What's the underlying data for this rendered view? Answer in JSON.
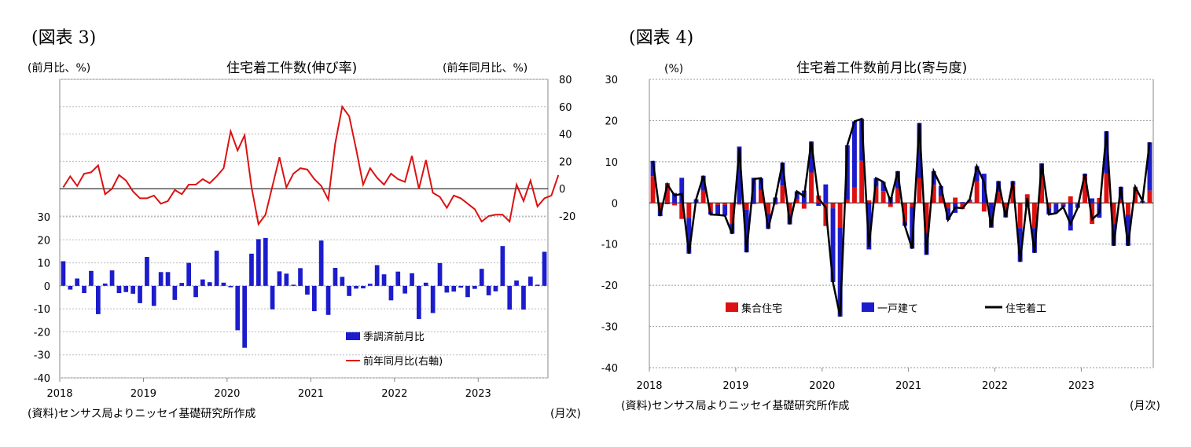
{
  "left": {
    "fig_label": "(図表 3)",
    "title": "住宅着工件数(伸び率)",
    "unit_left": "(前月比、%)",
    "unit_right": "(前年同月比、%)",
    "source": "(資料)センサス局よりニッセイ基礎研究所作成",
    "month_label": "(月次)"
  },
  "right": {
    "fig_label": "(図表 4)",
    "title": "住宅着工件数前月比(寄与度)",
    "unit": "(%)",
    "source": "(資料)センサス局よりニッセイ基礎研究所作成",
    "month_label": "(月次)"
  },
  "chart_data": [
    {
      "type": "bar",
      "title": "住宅着工件数(伸び率)",
      "x_tick_labels": [
        "2018",
        "2019",
        "2020",
        "2021",
        "2022",
        "2023"
      ],
      "x_start": "2018-01",
      "x_end": "2023-11",
      "ylim_left": [
        -40,
        30
      ],
      "yticks_left": [
        30,
        20,
        10,
        0,
        -10,
        -20,
        -30,
        -40
      ],
      "ylim_right": [
        -20,
        80
      ],
      "yticks_right": [
        80,
        60,
        40,
        20,
        0,
        -20
      ],
      "grid": true,
      "legend_position": "bottom-right",
      "colors": {
        "bar": "#1c1ccc",
        "line": "#dd1111"
      },
      "series": [
        {
          "name": "季調済前月比",
          "kind": "bar",
          "axis": "left",
          "values": [
            10.7,
            -1.6,
            3.2,
            -3.1,
            6.5,
            -12.3,
            1.0,
            6.7,
            -3.1,
            -2.7,
            -3.4,
            -7.5,
            12.6,
            -8.7,
            6.0,
            6.0,
            -6.1,
            1.3,
            10.0,
            -4.9,
            2.8,
            1.6,
            15.3,
            1.4,
            -0.6,
            -19.3,
            -26.9,
            14.0,
            20.3,
            20.8,
            -10.2,
            6.3,
            5.3,
            0.5,
            7.7,
            -3.8,
            -11.0,
            19.7,
            -12.6,
            7.8,
            3.9,
            -4.4,
            -1.2,
            -1.1,
            0.9,
            9.0,
            5.0,
            -6.3,
            6.2,
            -3.3,
            5.5,
            -14.4,
            1.4,
            -11.8,
            9.9,
            -2.9,
            -2.5,
            -0.8,
            -4.9,
            -1.3,
            7.4,
            -4.1,
            -2.4,
            17.3,
            -10.3,
            2.3,
            -10.3,
            4.0,
            0.5,
            14.8
          ]
        },
        {
          "name": "前年同月比(右軸)",
          "kind": "line",
          "axis": "right",
          "values": [
            1,
            9,
            2,
            11,
            12,
            17,
            -4,
            0,
            10,
            6,
            -2,
            -7,
            -7,
            -5,
            -11,
            -9,
            -1,
            -4,
            3,
            3,
            7,
            4,
            9,
            15,
            42,
            28,
            39,
            1,
            -26,
            -19,
            2,
            23,
            1,
            11,
            15,
            14,
            7,
            2,
            -8,
            33,
            60,
            53,
            29,
            3,
            15,
            8,
            3,
            11,
            7,
            5,
            24,
            0,
            21,
            -3,
            -6,
            -14,
            -5,
            -7,
            -11,
            -15,
            -24,
            -20,
            -19,
            -19,
            -24,
            3,
            -9,
            6,
            -13,
            -7,
            -5,
            10
          ]
        }
      ]
    },
    {
      "type": "bar",
      "title": "住宅着工件数前月比(寄与度)",
      "x_tick_labels": [
        "2018",
        "2019",
        "2020",
        "2021",
        "2022",
        "2023"
      ],
      "x_start": "2018-01",
      "x_end": "2023-11",
      "ylim": [
        -40,
        30
      ],
      "yticks": [
        30,
        20,
        10,
        0,
        -10,
        -20,
        -30,
        -40
      ],
      "grid": true,
      "stacked": true,
      "legend_position": "bottom",
      "colors": {
        "multi": "#dd1111",
        "single": "#1c1ccc",
        "total": "#000000"
      },
      "series": [
        {
          "name": "集合住宅",
          "kind": "bar",
          "values": [
            6.5,
            -1.8,
            4.8,
            -0.6,
            -3.9,
            -3.6,
            0.1,
            3.0,
            -2.1,
            -0.5,
            -0.5,
            -5.1,
            -0.4,
            -1.6,
            -0.3,
            3.2,
            -2.7,
            -0.4,
            4.2,
            -2.8,
            0.9,
            -1.4,
            7.4,
            1.8,
            -5.6,
            -1.3,
            -5.9,
            0.8,
            3.7,
            10.2,
            0.6,
            3.9,
            2.9,
            -1.0,
            3.5,
            -4.7,
            -1.0,
            6.0,
            -7.3,
            4.4,
            1.6,
            -1.3,
            1.3,
            -1.5,
            0.5,
            5.3,
            -2.1,
            0.1,
            2.7,
            -1.6,
            4.4,
            -6.1,
            2.1,
            -6.1,
            6.8,
            -1.3,
            -0.3,
            -0.4,
            1.6,
            -0.3,
            6.5,
            -5.1,
            1.2,
            7.2,
            -5.2,
            0.8,
            -2.9,
            3.8,
            0.1,
            3.0
          ]
        },
        {
          "name": "一戸建て",
          "kind": "bar",
          "values": [
            3.7,
            -1.4,
            -0.3,
            2.4,
            6.1,
            -8.7,
            0.8,
            3.6,
            -0.7,
            -2.4,
            -2.6,
            -2.4,
            13.7,
            -10.4,
            6.1,
            2.8,
            -3.6,
            1.3,
            5.6,
            -2.4,
            1.9,
            3.0,
            7.5,
            -0.7,
            4.5,
            -17.9,
            -21.7,
            13.2,
            16.1,
            10.2,
            -11.3,
            2.1,
            2.2,
            1.4,
            4.2,
            -0.9,
            -10.1,
            13.4,
            -5.3,
            3.3,
            2.5,
            -2.8,
            -2.4,
            0.2,
            0.3,
            3.6,
            7.1,
            -6.0,
            2.6,
            -1.9,
            0.9,
            -8.2,
            -0.9,
            -6.0,
            2.8,
            -1.5,
            -2.2,
            -0.6,
            -6.7,
            -0.9,
            0.6,
            1.1,
            -3.6,
            10.2,
            -5.2,
            3.1,
            -7.5,
            0.1,
            0.4,
            11.7
          ]
        },
        {
          "name": "住宅着工",
          "kind": "line",
          "values": [
            10.2,
            -3.2,
            4.5,
            1.8,
            2.2,
            -12.3,
            0.9,
            6.6,
            -2.8,
            -2.9,
            -3.1,
            -7.5,
            13.3,
            -12.0,
            5.8,
            6.0,
            -6.3,
            0.9,
            9.8,
            -5.2,
            2.8,
            1.6,
            14.9,
            1.1,
            -1.1,
            -19.2,
            -27.6,
            14.0,
            19.8,
            20.4,
            -10.7,
            6.0,
            5.1,
            0.4,
            7.7,
            -5.6,
            -11.1,
            19.4,
            -12.6,
            7.7,
            4.1,
            -4.1,
            -1.1,
            -1.3,
            0.8,
            8.9,
            5.0,
            -5.9,
            5.3,
            -3.5,
            5.3,
            -14.3,
            1.2,
            -12.1,
            9.6,
            -2.8,
            -2.5,
            -1.0,
            -5.1,
            -1.2,
            7.1,
            -4.0,
            -2.4,
            17.4,
            -10.4,
            3.9,
            -10.4,
            3.9,
            0.5,
            14.7
          ]
        }
      ]
    }
  ]
}
